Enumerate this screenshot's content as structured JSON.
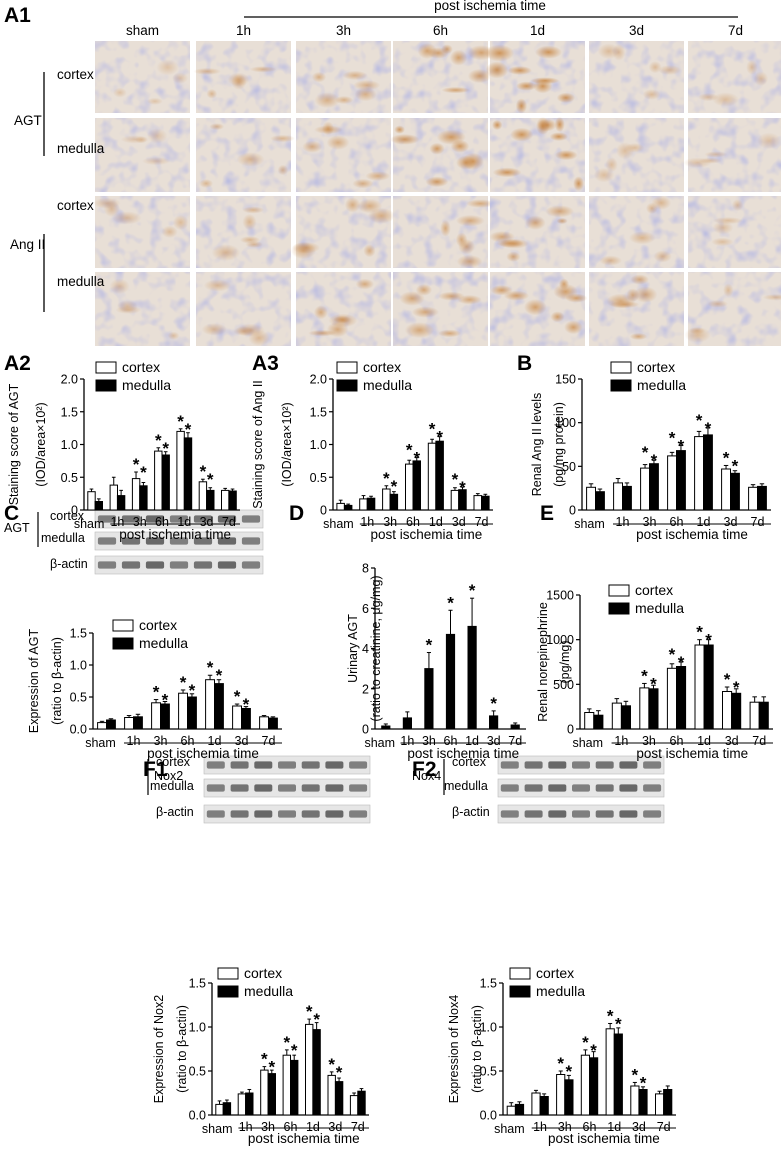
{
  "figure": {
    "A1": {
      "panel_label": "A1",
      "header": "post ischemia time",
      "columns": [
        "sham",
        "1h",
        "3h",
        "6h",
        "1d",
        "3d",
        "7d"
      ],
      "groups": [
        {
          "name": "AGT",
          "rows": [
            "cortex",
            "medulla"
          ]
        },
        {
          "name": "Ang II",
          "rows": [
            "cortex",
            "medulla"
          ]
        }
      ]
    },
    "blots": {
      "C": {
        "group": "AGT",
        "rows": [
          "cortex",
          "medulla"
        ],
        "loading": "β-actin"
      },
      "F1": {
        "group": "Nox2",
        "rows": [
          "cortex",
          "medulla"
        ],
        "loading": "β-actin"
      },
      "F2": {
        "group": "Nox4",
        "rows": [
          "cortex",
          "medulla"
        ],
        "loading": "β-actin"
      }
    }
  },
  "chart_data": [
    {
      "panel": "A2",
      "type": "bar",
      "categories": [
        "sham",
        "1h",
        "3h",
        "6h",
        "1d",
        "3d",
        "7d"
      ],
      "xlabel": "post ischemia time",
      "ylabel": [
        "Staining score of  AGT",
        "(IOD/area×10²)"
      ],
      "ylim": [
        0,
        2
      ],
      "yticks": [
        "0",
        "0.5",
        "1.0",
        "1.5",
        "2.0"
      ],
      "legend": [
        "cortex",
        "medulla"
      ],
      "series": [
        {
          "name": "cortex",
          "values": [
            0.28,
            0.38,
            0.48,
            0.9,
            1.2,
            0.43,
            0.3
          ],
          "errors": [
            0.04,
            0.12,
            0.1,
            0.05,
            0.04,
            0.04,
            0.03
          ]
        },
        {
          "name": "medulla",
          "values": [
            0.13,
            0.22,
            0.37,
            0.84,
            1.1,
            0.3,
            0.29
          ],
          "errors": [
            0.04,
            0.08,
            0.05,
            0.05,
            0.08,
            0.04,
            0.03
          ]
        }
      ],
      "significance": [
        "",
        "",
        "**",
        "**",
        "**",
        "**",
        ""
      ]
    },
    {
      "panel": "A3",
      "type": "bar",
      "categories": [
        "sham",
        "1h",
        "3h",
        "6h",
        "1d",
        "3d",
        "7d"
      ],
      "xlabel": "post ischemia time",
      "ylabel": [
        "Staining score of  Ang II",
        "(IOD/area×10²)"
      ],
      "ylim": [
        0,
        2
      ],
      "yticks": [
        "0",
        "0.5",
        "1.0",
        "1.5",
        "2.0"
      ],
      "legend": [
        "cortex",
        "medulla"
      ],
      "series": [
        {
          "name": "cortex",
          "values": [
            0.1,
            0.17,
            0.32,
            0.7,
            1.02,
            0.3,
            0.22
          ],
          "errors": [
            0.05,
            0.05,
            0.05,
            0.06,
            0.06,
            0.04,
            0.03
          ]
        },
        {
          "name": "medulla",
          "values": [
            0.07,
            0.18,
            0.24,
            0.75,
            1.05,
            0.31,
            0.21
          ],
          "errors": [
            0.02,
            0.03,
            0.04,
            0.05,
            0.07,
            0.04,
            0.03
          ]
        }
      ],
      "significance": [
        "",
        "",
        "**",
        "**",
        "**",
        "**",
        ""
      ]
    },
    {
      "panel": "B",
      "type": "bar",
      "categories": [
        "sham",
        "1h",
        "3h",
        "6h",
        "1d",
        "3d",
        "7d"
      ],
      "xlabel": "post ischemia time",
      "ylabel": [
        "Renal Ang II levels",
        "(pg/mg protein)"
      ],
      "ylim": [
        0,
        150
      ],
      "yticks": [
        "0",
        "50",
        "100",
        "150"
      ],
      "legend": [
        "cortex",
        "medulla"
      ],
      "series": [
        {
          "name": "cortex",
          "values": [
            26,
            31,
            48,
            62,
            84,
            47,
            26
          ],
          "errors": [
            4,
            5,
            4,
            4,
            6,
            4,
            3
          ]
        },
        {
          "name": "medulla",
          "values": [
            21,
            27,
            53,
            68,
            86,
            42,
            27
          ],
          "errors": [
            3,
            4,
            4,
            6,
            8,
            3,
            3
          ]
        }
      ],
      "significance": [
        "",
        "",
        "**",
        "**",
        "**",
        "**",
        ""
      ]
    },
    {
      "panel": "C",
      "type": "bar",
      "categories": [
        "sham",
        "1h",
        "3h",
        "6h",
        "1d",
        "3d",
        "7d"
      ],
      "xlabel": "post ischemia time",
      "ylabel": [
        "Expression of AGT",
        "(ratio to β-actin)"
      ],
      "ylim": [
        0,
        1.5
      ],
      "yticks": [
        "0.0",
        "0.5",
        "1.0",
        "1.5"
      ],
      "legend": [
        "cortex",
        "medulla"
      ],
      "series": [
        {
          "name": "cortex",
          "values": [
            0.1,
            0.18,
            0.41,
            0.56,
            0.77,
            0.36,
            0.19
          ],
          "errors": [
            0.02,
            0.03,
            0.05,
            0.05,
            0.07,
            0.03,
            0.02
          ]
        },
        {
          "name": "medulla",
          "values": [
            0.14,
            0.19,
            0.39,
            0.5,
            0.71,
            0.32,
            0.17
          ],
          "errors": [
            0.02,
            0.04,
            0.04,
            0.05,
            0.06,
            0.03,
            0.02
          ]
        }
      ],
      "significance": [
        "",
        "",
        "**",
        "**",
        "**",
        "**",
        ""
      ]
    },
    {
      "panel": "D",
      "type": "bar",
      "categories": [
        "sham",
        "1h",
        "3h",
        "6h",
        "1d",
        "3d",
        "7d"
      ],
      "xlabel": "post ischemia time",
      "ylabel": [
        "Urinary AGT",
        "(ratio to creatinine, μg/mg)"
      ],
      "ylim": [
        0,
        8
      ],
      "yticks": [
        "0",
        "2",
        "4",
        "6",
        "8"
      ],
      "series": [
        {
          "name": "",
          "values": [
            0.15,
            0.55,
            3.0,
            4.7,
            5.1,
            0.65,
            0.2
          ],
          "errors": [
            0.1,
            0.3,
            0.8,
            1.2,
            1.4,
            0.25,
            0.1
          ]
        }
      ],
      "significance": [
        "",
        "",
        "*",
        "*",
        "*",
        "*",
        ""
      ]
    },
    {
      "panel": "E",
      "type": "bar",
      "categories": [
        "sham",
        "1h",
        "3h",
        "6h",
        "1d",
        "3d",
        "7d"
      ],
      "xlabel": "post ischemia time",
      "ylabel": [
        "Renal norepinephrine",
        "(pg/mg)"
      ],
      "ylim": [
        0,
        1500
      ],
      "yticks": [
        "0",
        "500",
        "1000",
        "1500"
      ],
      "legend": [
        "cortex",
        "medulla"
      ],
      "series": [
        {
          "name": "cortex",
          "values": [
            185,
            290,
            460,
            680,
            940,
            420,
            300
          ],
          "errors": [
            40,
            50,
            50,
            50,
            60,
            50,
            60
          ]
        },
        {
          "name": "medulla",
          "values": [
            155,
            260,
            450,
            700,
            940,
            400,
            300
          ],
          "errors": [
            50,
            50,
            40,
            50,
            60,
            50,
            60
          ]
        }
      ],
      "significance": [
        "",
        "",
        "**",
        "**",
        "**",
        "**",
        ""
      ]
    },
    {
      "panel": "F1",
      "type": "bar",
      "categories": [
        "sham",
        "1h",
        "3h",
        "6h",
        "1d",
        "3d",
        "7d"
      ],
      "xlabel": "post ischemia time",
      "ylabel": [
        "Expression of Nox2",
        "(ratio to β-actin)"
      ],
      "ylim": [
        0,
        1.5
      ],
      "yticks": [
        "0.0",
        "0.5",
        "1.0",
        "1.5"
      ],
      "legend": [
        "cortex",
        "medulla"
      ],
      "series": [
        {
          "name": "cortex",
          "values": [
            0.12,
            0.24,
            0.51,
            0.68,
            1.03,
            0.45,
            0.22
          ],
          "errors": [
            0.04,
            0.02,
            0.04,
            0.06,
            0.06,
            0.04,
            0.03
          ]
        },
        {
          "name": "medulla",
          "values": [
            0.14,
            0.25,
            0.47,
            0.62,
            0.97,
            0.38,
            0.27
          ],
          "errors": [
            0.03,
            0.04,
            0.04,
            0.06,
            0.08,
            0.04,
            0.03
          ]
        }
      ],
      "significance": [
        "",
        "",
        "**",
        "**",
        "**",
        "**",
        ""
      ]
    },
    {
      "panel": "F2",
      "type": "bar",
      "categories": [
        "sham",
        "1h",
        "3h",
        "6h",
        "1d",
        "3d",
        "7d"
      ],
      "xlabel": "post ischemia time",
      "ylabel": [
        "Expression of Nox4",
        "(ratio to β-actin)"
      ],
      "ylim": [
        0,
        1.5
      ],
      "yticks": [
        "0.0",
        "0.5",
        "1.0",
        "1.5"
      ],
      "legend": [
        "cortex",
        "medulla"
      ],
      "series": [
        {
          "name": "cortex",
          "values": [
            0.1,
            0.25,
            0.46,
            0.68,
            0.98,
            0.33,
            0.24
          ],
          "errors": [
            0.04,
            0.03,
            0.04,
            0.06,
            0.06,
            0.04,
            0.03
          ]
        },
        {
          "name": "medulla",
          "values": [
            0.12,
            0.21,
            0.4,
            0.65,
            0.92,
            0.29,
            0.29
          ],
          "errors": [
            0.03,
            0.03,
            0.05,
            0.07,
            0.07,
            0.03,
            0.04
          ]
        }
      ],
      "significance": [
        "",
        "",
        "**",
        "**",
        "**",
        "**",
        ""
      ]
    }
  ]
}
